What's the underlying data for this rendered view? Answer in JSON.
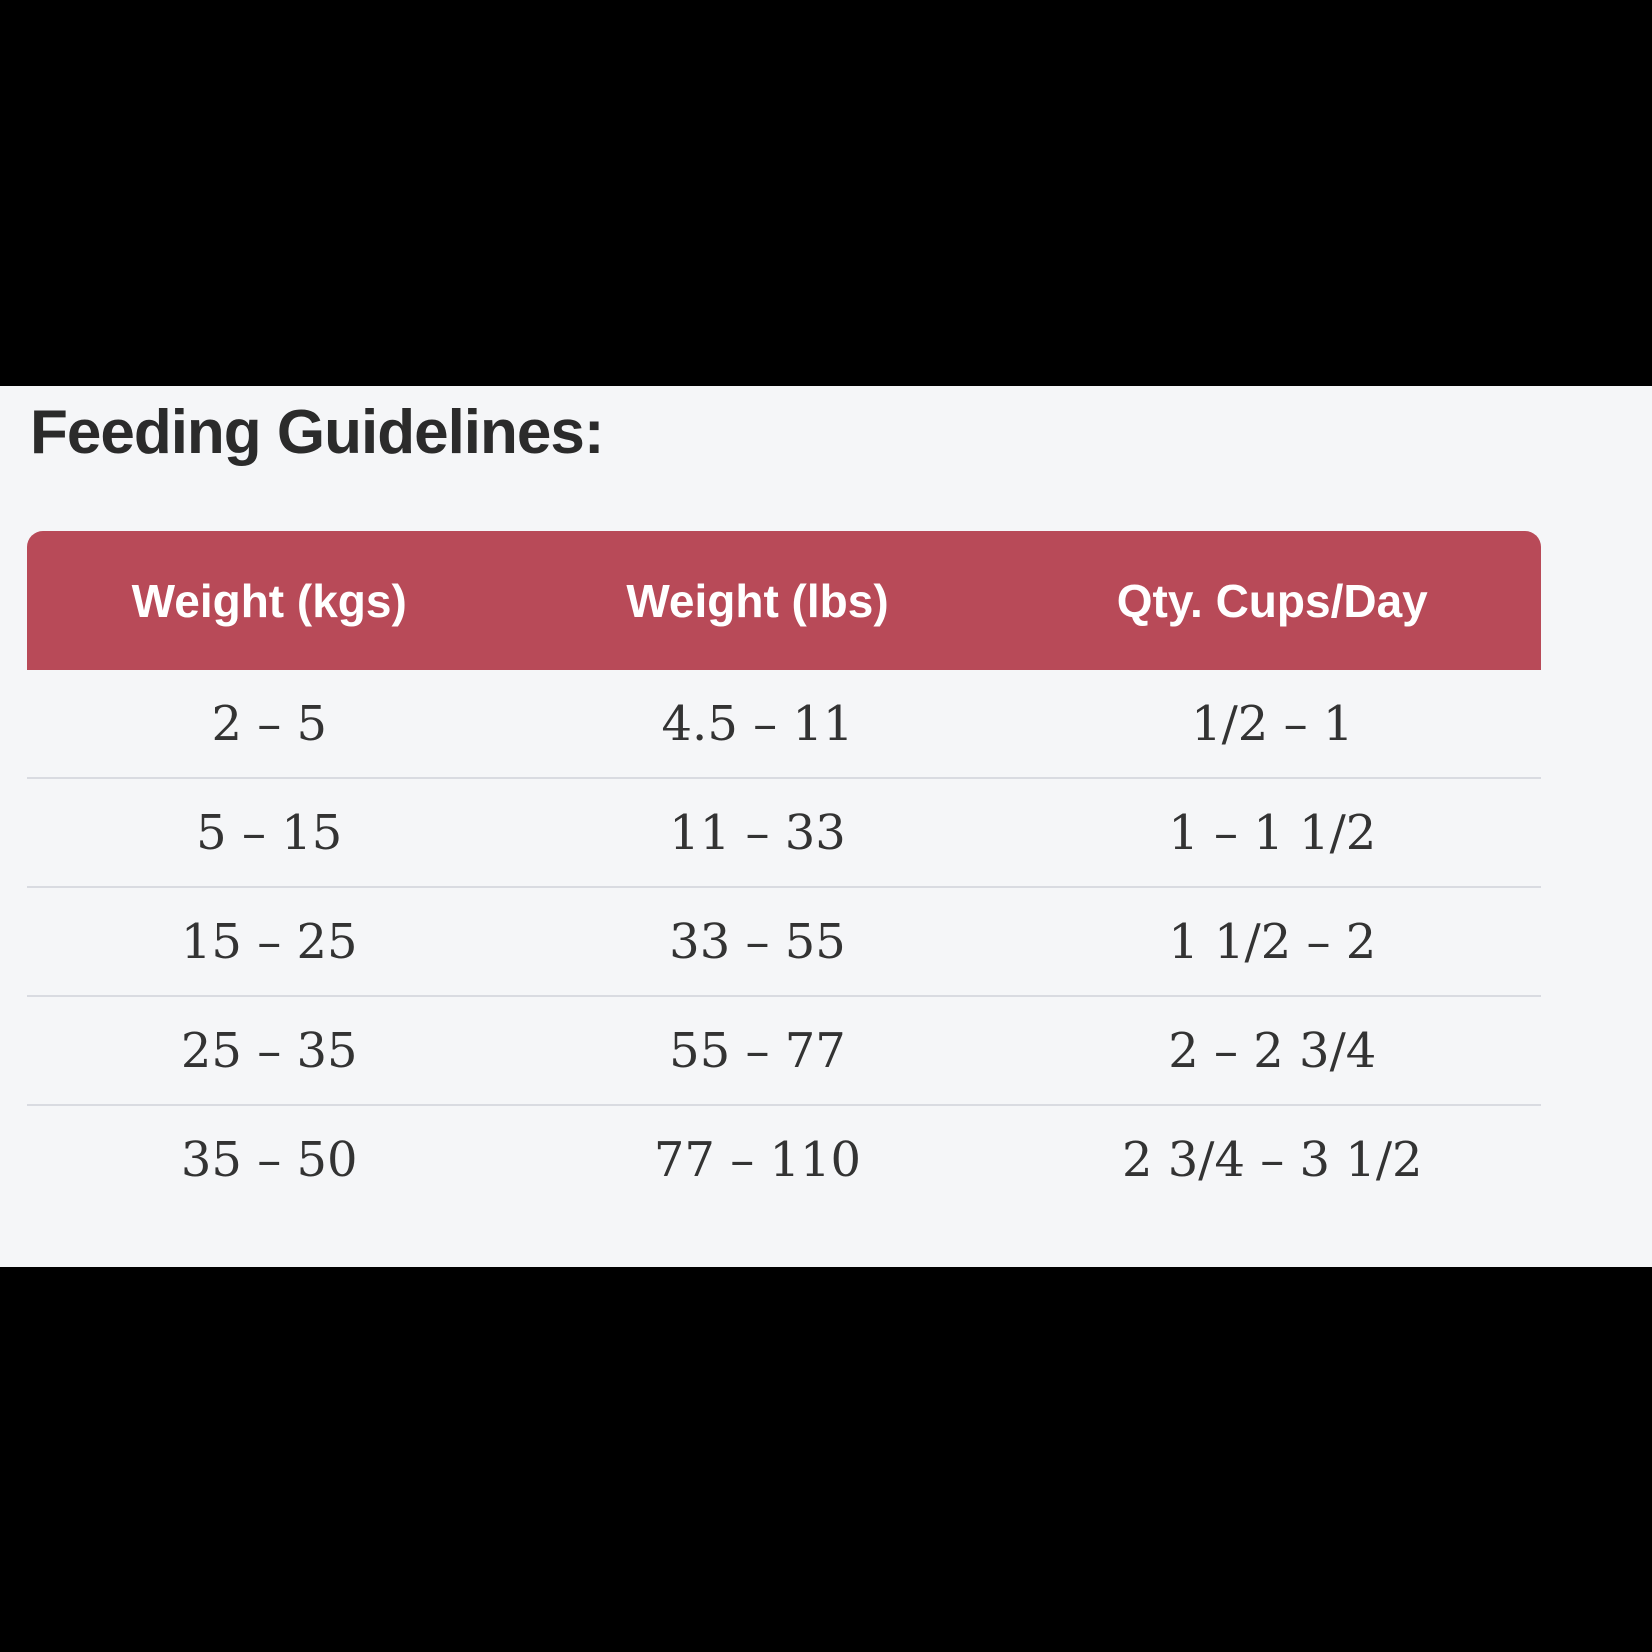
{
  "page": {
    "title": "Feeding Guidelines:"
  },
  "table": {
    "columns": [
      "Weight (kgs)",
      "Weight (lbs)",
      "Qty. Cups/Day"
    ],
    "rows": [
      [
        "2 – 5",
        "4.5 – 11",
        "1/2 – 1"
      ],
      [
        "5 – 15",
        "11 – 33",
        "1 – 1 1/2"
      ],
      [
        "15 – 25",
        "33 – 55",
        "1 1/2 – 2"
      ],
      [
        "25 – 35",
        "55 – 77",
        "2 – 2 3/4"
      ],
      [
        "35 – 50",
        "77 – 110",
        "2 3/4 – 3 1/2"
      ]
    ]
  },
  "colors": {
    "frame_bg": "#000000",
    "content_bg": "#f5f6f8",
    "header_bg": "#b84a58",
    "header_text": "#ffffff",
    "title_text": "#2b2b2b",
    "body_text": "#333333",
    "separator": "#d9dbe1"
  }
}
